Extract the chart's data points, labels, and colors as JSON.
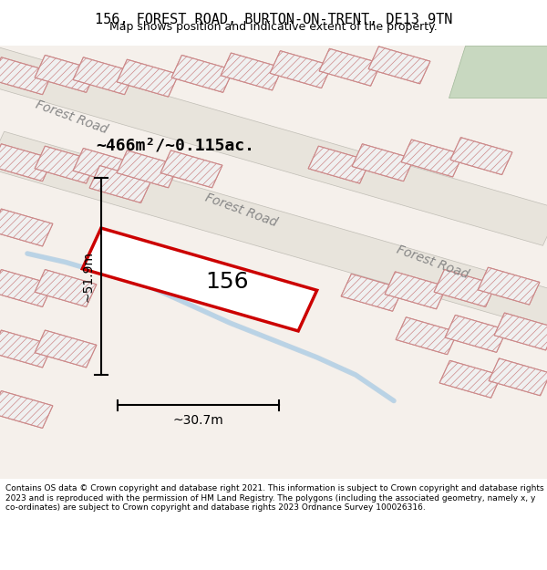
{
  "title": "156, FOREST ROAD, BURTON-ON-TRENT, DE13 9TN",
  "subtitle": "Map shows position and indicative extent of the property.",
  "footer": "Contains OS data © Crown copyright and database right 2021. This information is subject to Crown copyright and database rights 2023 and is reproduced with the permission of HM Land Registry. The polygons (including the associated geometry, namely x, y co-ordinates) are subject to Crown copyright and database rights 2023 Ordnance Survey 100026316.",
  "area_label": "~466m²/~0.115ac.",
  "label_156": "156",
  "dim_height": "~51.9m",
  "dim_width": "~30.7m",
  "bg_color": "#ffffff",
  "map_bg": "#f7f7f7",
  "road_color": "#d8d8d8",
  "hatching_color": "#e8b8b8",
  "red_outline": "#cc0000",
  "blue_water": "#b8d8e8",
  "road_label_color": "#888888",
  "green_patch": "#c8dcc8",
  "figsize": [
    6.0,
    6.25
  ],
  "dpi": 100
}
